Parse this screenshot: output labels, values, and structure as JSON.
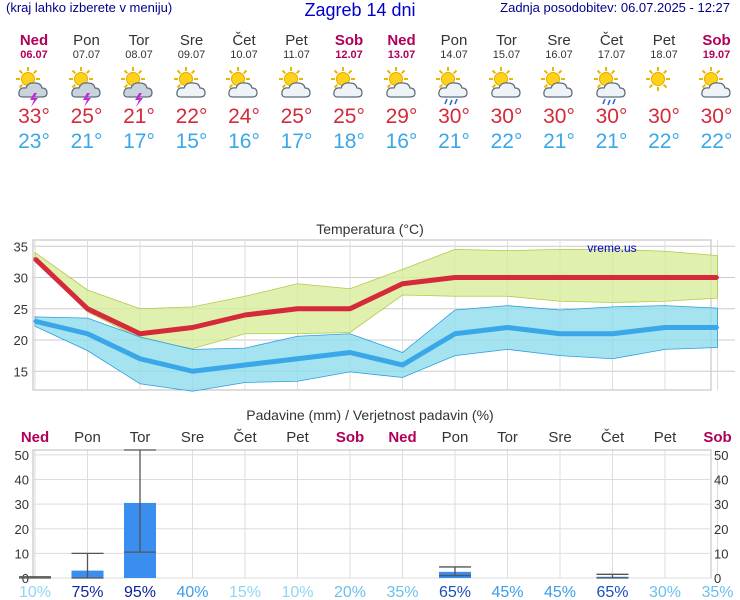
{
  "header": {
    "left": "(kraj lahko izberete v meniju)",
    "title": "Zagreb 14 dni",
    "right": "Zadnja posodobitev: 06.07.2025 - 12:27"
  },
  "days": [
    {
      "name": "Ned",
      "date": "06.07",
      "weekend": true,
      "icon": "storm-icon",
      "max": "33°",
      "min": "23°"
    },
    {
      "name": "Pon",
      "date": "07.07",
      "weekend": false,
      "icon": "storm-icon",
      "max": "25°",
      "min": "21°"
    },
    {
      "name": "Tor",
      "date": "08.07",
      "weekend": false,
      "icon": "storm-icon",
      "max": "21°",
      "min": "17°"
    },
    {
      "name": "Sre",
      "date": "09.07",
      "weekend": false,
      "icon": "partly-cloudy-icon",
      "max": "22°",
      "min": "15°"
    },
    {
      "name": "Čet",
      "date": "10.07",
      "weekend": false,
      "icon": "partly-cloudy-icon",
      "max": "24°",
      "min": "16°"
    },
    {
      "name": "Pet",
      "date": "11.07",
      "weekend": false,
      "icon": "partly-cloudy-icon",
      "max": "25°",
      "min": "17°"
    },
    {
      "name": "Sob",
      "date": "12.07",
      "weekend": true,
      "icon": "partly-cloudy-icon",
      "max": "25°",
      "min": "18°"
    },
    {
      "name": "Ned",
      "date": "13.07",
      "weekend": true,
      "icon": "partly-cloudy-icon",
      "max": "29°",
      "min": "16°"
    },
    {
      "name": "Pon",
      "date": "14.07",
      "weekend": false,
      "icon": "sun-rain-icon",
      "max": "30°",
      "min": "21°"
    },
    {
      "name": "Tor",
      "date": "15.07",
      "weekend": false,
      "icon": "sun-cloud-icon",
      "max": "30°",
      "min": "22°"
    },
    {
      "name": "Sre",
      "date": "16.07",
      "weekend": false,
      "icon": "sun-cloud-icon",
      "max": "30°",
      "min": "21°"
    },
    {
      "name": "Čet",
      "date": "17.07",
      "weekend": false,
      "icon": "sun-rain-icon",
      "max": "30°",
      "min": "21°"
    },
    {
      "name": "Pet",
      "date": "18.07",
      "weekend": false,
      "icon": "sun-icon",
      "max": "30°",
      "min": "22°"
    },
    {
      "name": "Sob",
      "date": "19.07",
      "weekend": true,
      "icon": "sun-cloud-icon",
      "max": "30°",
      "min": "22°"
    }
  ],
  "colors": {
    "max": "#d42a3a",
    "min": "#3aa8e8",
    "weekend": "#b0005a",
    "precip": "#3a8ef0"
  },
  "chart_data": [
    {
      "type": "line",
      "title": "Temperatura (°C)",
      "watermark": "vreme.us",
      "categories": [
        "06.07",
        "07.07",
        "08.07",
        "09.07",
        "10.07",
        "11.07",
        "12.07",
        "13.07",
        "14.07",
        "15.07",
        "16.07",
        "17.07",
        "18.07",
        "19.07"
      ],
      "ylim": [
        12,
        36
      ],
      "yticks": [
        15,
        20,
        25,
        30,
        35
      ],
      "grid": true,
      "series": [
        {
          "values": [
            33,
            25,
            21,
            22,
            24,
            25,
            25,
            29,
            30,
            30,
            30,
            30,
            30,
            30
          ],
          "color": "#d42a3a"
        },
        {
          "values": [
            23,
            21,
            17,
            15,
            16,
            17,
            18,
            16,
            21,
            22,
            21,
            21,
            22,
            22
          ],
          "color": "#3aa8e8"
        }
      ],
      "bands": [
        {
          "upper": [
            34,
            28,
            25,
            25.3,
            27,
            29,
            28.2,
            31.3,
            34.5,
            34.3,
            34.5,
            34.5,
            34.2,
            33.5
          ],
          "lower": [
            33,
            24.5,
            20.3,
            18.6,
            21,
            21,
            21.2,
            27.2,
            27,
            27,
            26.2,
            26,
            26.2,
            26.7
          ],
          "color": "#d8ec9a"
        },
        {
          "upper": [
            23.7,
            23.5,
            20.5,
            18.5,
            18.7,
            20.6,
            21,
            18,
            24.8,
            25.5,
            24.8,
            25.3,
            25.5,
            25.1
          ],
          "lower": [
            22.2,
            18.3,
            13,
            11.8,
            13.2,
            13.4,
            14.9,
            14,
            17.5,
            18.5,
            17.5,
            17,
            18.5,
            18.8
          ],
          "color": "#8fdcec"
        }
      ]
    },
    {
      "type": "bar",
      "title": "Padavine (mm) / Verjetnost padavin (%)",
      "categories": [
        "Ned",
        "Pon",
        "Tor",
        "Sre",
        "Čet",
        "Pet",
        "Sob",
        "Ned",
        "Pon",
        "Tor",
        "Sre",
        "Čet",
        "Pet",
        "Sob"
      ],
      "weekend": [
        true,
        false,
        false,
        false,
        false,
        false,
        true,
        true,
        false,
        false,
        false,
        false,
        false,
        true
      ],
      "ylim": [
        0,
        52
      ],
      "yticks": [
        0,
        10,
        20,
        30,
        40,
        50
      ],
      "values": [
        0,
        3,
        30.5,
        0,
        0,
        0,
        0,
        0,
        2.5,
        0,
        0,
        0.5,
        0,
        0
      ],
      "error": [
        [
          0,
          0.5
        ],
        [
          0,
          10
        ],
        [
          10.5,
          52
        ],
        null,
        null,
        null,
        null,
        null,
        [
          1,
          4.5
        ],
        null,
        null,
        [
          0,
          1.5
        ],
        null,
        null
      ],
      "probability": [
        "10%",
        "75%",
        "95%",
        "40%",
        "15%",
        "10%",
        "20%",
        "35%",
        "65%",
        "45%",
        "45%",
        "65%",
        "30%",
        "35%"
      ],
      "probability_values": [
        10,
        75,
        95,
        40,
        15,
        10,
        20,
        35,
        65,
        45,
        45,
        65,
        30,
        35
      ]
    }
  ]
}
